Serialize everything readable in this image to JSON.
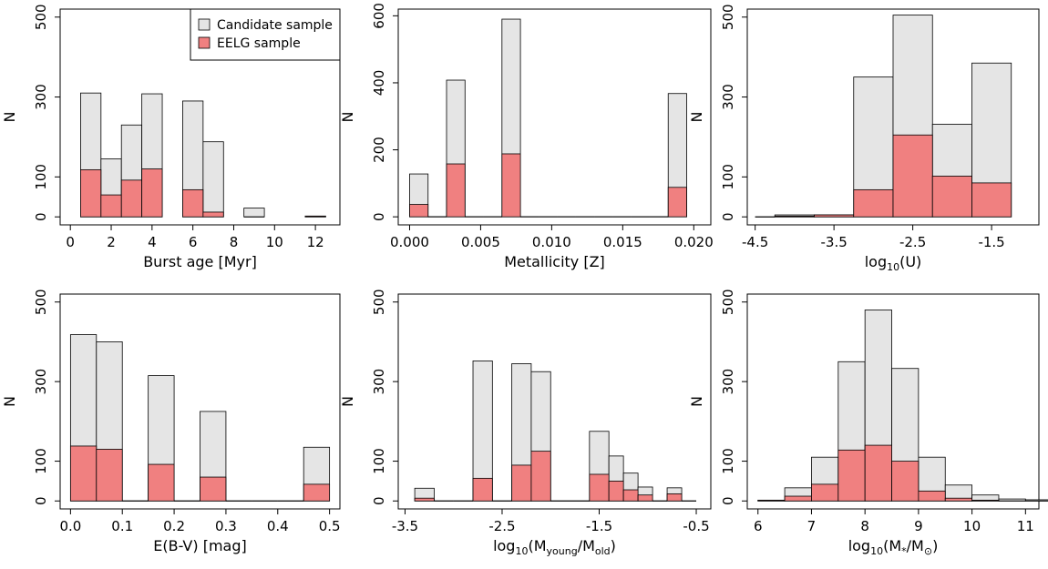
{
  "figure": {
    "legend": {
      "entries": [
        {
          "label": "Candidate sample",
          "color": "#e5e5e5"
        },
        {
          "label": "EELG sample",
          "color": "#f08080"
        }
      ],
      "location": "top-right of first panel"
    }
  },
  "chart_data": [
    {
      "type": "bar",
      "title": "",
      "xlabel": "Burst age [Myr]",
      "ylabel": "N",
      "xlim": [
        -0.5,
        13.2
      ],
      "ylim": [
        -20,
        520
      ],
      "xticks": [
        0,
        2,
        4,
        6,
        8,
        10,
        12
      ],
      "xtick_labels": [
        "0",
        "2",
        "4",
        "6",
        "8",
        "10",
        "12"
      ],
      "yticks": [
        0,
        100,
        300,
        500
      ],
      "ytick_labels": [
        "0",
        "100",
        "300",
        "500"
      ],
      "bins": [
        [
          0.5,
          1.5
        ],
        [
          1.5,
          2.5
        ],
        [
          2.5,
          3.5
        ],
        [
          3.5,
          4.5
        ],
        [
          5.5,
          6.5
        ],
        [
          6.5,
          7.5
        ],
        [
          8.5,
          9.5
        ],
        [
          11.5,
          12.5
        ]
      ],
      "series": [
        {
          "name": "Candidate sample",
          "values": [
            310,
            145,
            230,
            308,
            290,
            188,
            22,
            2
          ]
        },
        {
          "name": "EELG sample",
          "values": [
            118,
            55,
            92,
            120,
            68,
            12,
            0,
            2
          ]
        }
      ]
    },
    {
      "type": "bar",
      "title": "",
      "xlabel": "Metallicity [Z]",
      "ylabel": "N",
      "xlim": [
        -0.0008,
        0.0212
      ],
      "ylim": [
        -24,
        620
      ],
      "xticks": [
        0.0,
        0.005,
        0.01,
        0.015,
        0.02
      ],
      "xtick_labels": [
        "0.000",
        "0.005",
        "0.010",
        "0.015",
        "0.020"
      ],
      "yticks": [
        0,
        200,
        400,
        600
      ],
      "ytick_labels": [
        "0",
        "200",
        "400",
        "600"
      ],
      "bins": [
        [
          0.0,
          0.0013
        ],
        [
          0.0013,
          0.0026
        ],
        [
          0.0026,
          0.0039
        ],
        [
          0.0039,
          0.0052
        ],
        [
          0.0052,
          0.0065
        ],
        [
          0.0065,
          0.0078
        ],
        [
          0.0078,
          0.0091
        ],
        [
          0.0091,
          0.0104
        ],
        [
          0.0104,
          0.0117
        ],
        [
          0.0117,
          0.013
        ],
        [
          0.013,
          0.0143
        ],
        [
          0.0143,
          0.0156
        ],
        [
          0.0156,
          0.0169
        ],
        [
          0.0169,
          0.0182
        ],
        [
          0.0182,
          0.0195
        ]
      ],
      "series": [
        {
          "name": "Candidate sample",
          "values": [
            128,
            0,
            408,
            0,
            0,
            590,
            0,
            0,
            0,
            0,
            0,
            0,
            0,
            0,
            368
          ]
        },
        {
          "name": "EELG sample",
          "values": [
            37,
            0,
            158,
            0,
            0,
            188,
            0,
            0,
            0,
            0,
            0,
            0,
            0,
            0,
            88
          ]
        }
      ]
    },
    {
      "type": "bar",
      "title": "",
      "xlabel": "log10(U)",
      "ylabel": "N",
      "xlim": [
        -4.6,
        -0.9
      ],
      "ylim": [
        -20,
        520
      ],
      "xticks": [
        -4.5,
        -3.5,
        -2.5,
        -1.5
      ],
      "xtick_labels": [
        "-4.5",
        "-3.5",
        "-2.5",
        "-1.5"
      ],
      "yticks": [
        0,
        100,
        300,
        500
      ],
      "ytick_labels": [
        "0",
        "100",
        "300",
        "500"
      ],
      "bins": [
        [
          -4.5,
          -4.25
        ],
        [
          -4.25,
          -3.75
        ],
        [
          -3.75,
          -3.25
        ],
        [
          -3.25,
          -2.75
        ],
        [
          -2.75,
          -2.25
        ],
        [
          -2.25,
          -1.75
        ],
        [
          -1.75,
          -1.25
        ]
      ],
      "series": [
        {
          "name": "Candidate sample",
          "values": [
            0,
            5,
            5,
            350,
            505,
            232,
            385
          ]
        },
        {
          "name": "EELG sample",
          "values": [
            0,
            2,
            5,
            68,
            205,
            102,
            85
          ]
        }
      ]
    },
    {
      "type": "bar",
      "title": "",
      "xlabel": "E(B-V) [mag]",
      "ylabel": "N",
      "xlim": [
        -0.02,
        0.52
      ],
      "ylim": [
        -20,
        520
      ],
      "xticks": [
        0.0,
        0.1,
        0.2,
        0.3,
        0.4,
        0.5
      ],
      "xtick_labels": [
        "0.0",
        "0.1",
        "0.2",
        "0.3",
        "0.4",
        "0.5"
      ],
      "yticks": [
        0,
        100,
        300,
        500
      ],
      "ytick_labels": [
        "0",
        "100",
        "300",
        "500"
      ],
      "bins": [
        [
          0.0,
          0.05
        ],
        [
          0.05,
          0.1
        ],
        [
          0.1,
          0.15
        ],
        [
          0.15,
          0.2
        ],
        [
          0.2,
          0.25
        ],
        [
          0.25,
          0.3
        ],
        [
          0.3,
          0.35
        ],
        [
          0.35,
          0.4
        ],
        [
          0.4,
          0.45
        ],
        [
          0.45,
          0.5
        ]
      ],
      "series": [
        {
          "name": "Candidate sample",
          "values": [
            418,
            400,
            0,
            315,
            0,
            225,
            0,
            0,
            0,
            135
          ]
        },
        {
          "name": "EELG sample",
          "values": [
            138,
            130,
            0,
            92,
            0,
            60,
            0,
            0,
            0,
            42
          ]
        }
      ]
    },
    {
      "type": "bar",
      "title": "",
      "xlabel": "log10(Myoung/Mold)",
      "ylabel": "N",
      "xlim": [
        -3.57,
        -0.35
      ],
      "ylim": [
        -20,
        520
      ],
      "xticks": [
        -3.5,
        -2.5,
        -1.5,
        -0.5
      ],
      "xtick_labels": [
        "-3.5",
        "-2.5",
        "-1.5",
        "-0.5"
      ],
      "yticks": [
        0,
        100,
        300,
        500
      ],
      "ytick_labels": [
        "0",
        "100",
        "300",
        "500"
      ],
      "bins": [
        [
          -3.4,
          -3.2
        ],
        [
          -3.2,
          -3.0
        ],
        [
          -3.0,
          -2.8
        ],
        [
          -2.8,
          -2.6
        ],
        [
          -2.6,
          -2.4
        ],
        [
          -2.4,
          -2.2
        ],
        [
          -2.2,
          -2.0
        ],
        [
          -2.0,
          -1.8
        ],
        [
          -1.8,
          -1.6
        ],
        [
          -1.6,
          -1.4
        ],
        [
          -1.4,
          -1.25
        ],
        [
          -1.25,
          -1.1
        ],
        [
          -1.1,
          -0.95
        ],
        [
          -0.95,
          -0.8
        ],
        [
          -0.8,
          -0.65
        ],
        [
          -0.65,
          -0.5
        ]
      ],
      "series": [
        {
          "name": "Candidate sample",
          "values": [
            32,
            0,
            0,
            352,
            0,
            345,
            325,
            0,
            0,
            175,
            113,
            70,
            35,
            0,
            33,
            0
          ]
        },
        {
          "name": "EELG sample",
          "values": [
            7,
            0,
            0,
            57,
            0,
            90,
            125,
            0,
            0,
            67,
            50,
            28,
            15,
            0,
            18,
            0
          ]
        }
      ]
    },
    {
      "type": "bar",
      "title": "",
      "xlabel": "log10(M*/M⊙)",
      "ylabel": "N",
      "xlim": [
        5.8,
        11.25
      ],
      "ylim": [
        -20,
        520
      ],
      "xticks": [
        6,
        7,
        8,
        9,
        10,
        11
      ],
      "xtick_labels": [
        "6",
        "7",
        "8",
        "9",
        "10",
        "11"
      ],
      "yticks": [
        0,
        100,
        300,
        500
      ],
      "ytick_labels": [
        "0",
        "100",
        "300",
        "500"
      ],
      "bins": [
        [
          6.0,
          6.5
        ],
        [
          6.5,
          7.0
        ],
        [
          7.0,
          7.5
        ],
        [
          7.5,
          8.0
        ],
        [
          8.0,
          8.5
        ],
        [
          8.5,
          9.0
        ],
        [
          9.0,
          9.5
        ],
        [
          9.5,
          10.0
        ],
        [
          10.0,
          10.5
        ],
        [
          10.5,
          11.0
        ],
        [
          11.0,
          11.5
        ]
      ],
      "series": [
        {
          "name": "Candidate sample",
          "values": [
            2,
            33,
            110,
            350,
            480,
            333,
            110,
            40,
            15,
            5,
            3
          ]
        },
        {
          "name": "EELG sample",
          "values": [
            2,
            12,
            42,
            128,
            140,
            100,
            25,
            7,
            2,
            0,
            0
          ]
        }
      ]
    }
  ]
}
